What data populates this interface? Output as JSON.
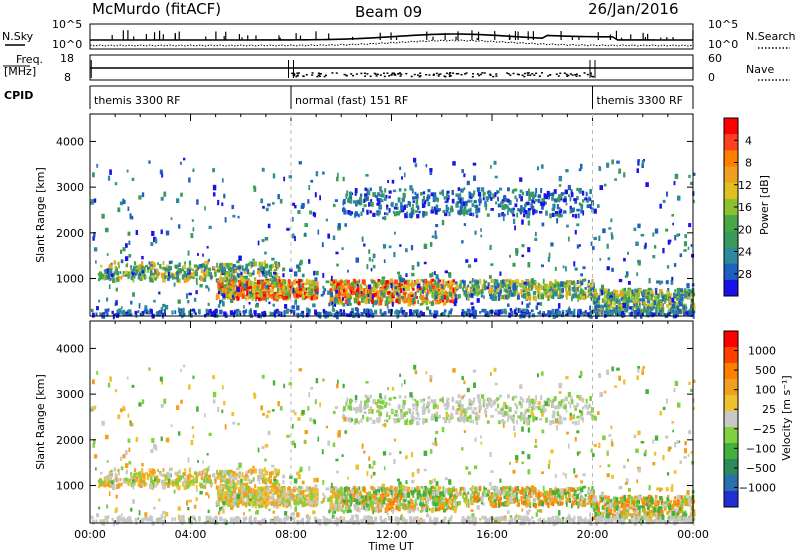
{
  "header": {
    "station": "McMurdo (fitACF)",
    "beam": "Beam 09",
    "date": "26/Jan/2016"
  },
  "top_panels": {
    "nsky_label": "N.Sky",
    "nsearch_label": "N.Search",
    "nsky_ticks": [
      "10^5",
      "10^0"
    ],
    "nsky_ticks_right": [
      "10^5",
      "10^0"
    ],
    "freq_label": "Freq.",
    "freq_unit": "[MHz]",
    "freq_ticks": [
      "18",
      "8"
    ],
    "nave_label": "Nave",
    "nave_ticks": [
      "60",
      "0"
    ],
    "cpid_label": "CPID",
    "cpid_segments": [
      {
        "label": "themis 3300 RF",
        "start_h": 0,
        "end_h": 8
      },
      {
        "label": "normal (fast) 151 RF",
        "start_h": 8,
        "end_h": 20
      },
      {
        "label": "themis 3300 RF",
        "start_h": 20,
        "end_h": 24
      }
    ]
  },
  "chart_data": [
    {
      "type": "heatmap",
      "name": "power",
      "xlabel": "Time UT",
      "ylabel": "Slant Range [km]",
      "xlim": [
        0,
        24
      ],
      "ylim": [
        180,
        4600
      ],
      "x_ticks": [
        "00:00",
        "04:00",
        "08:00",
        "12:00",
        "16:00",
        "20:00",
        "00:00"
      ],
      "y_ticks": [
        "1000",
        "2000",
        "3000",
        "4000"
      ],
      "y_tick_values": [
        1000,
        2000,
        3000,
        4000
      ],
      "colorbar": {
        "label": "Power [dB]",
        "ticks": [
          "4",
          "8",
          "12",
          "16",
          "20",
          "24",
          "28"
        ],
        "colors": [
          "#1a10e8",
          "#1f5fbf",
          "#2e8a9a",
          "#3a9a5a",
          "#48a848",
          "#8cc030",
          "#e0c020",
          "#f0a020",
          "#ff8000",
          "#ff4020",
          "#ff0000"
        ]
      },
      "echo_regions": [
        {
          "t": [
            0.3,
            7.5
          ],
          "r": [
            1000,
            1400
          ],
          "level": "mid",
          "desc": "near range band"
        },
        {
          "t": [
            5.0,
            9.0
          ],
          "r": [
            600,
            1000
          ],
          "level": "high"
        },
        {
          "t": [
            9.5,
            14.5
          ],
          "r": [
            500,
            1000
          ],
          "level": "high"
        },
        {
          "t": [
            14.5,
            20.0
          ],
          "r": [
            600,
            1000
          ],
          "level": "mid"
        },
        {
          "t": [
            10.0,
            20.0
          ],
          "r": [
            2400,
            3000
          ],
          "level": "low"
        },
        {
          "t": [
            20.0,
            24.0
          ],
          "r": [
            300,
            800
          ],
          "level": "mid"
        }
      ]
    },
    {
      "type": "heatmap",
      "name": "velocity",
      "xlabel": "Time UT",
      "ylabel": "Slant Range [km]",
      "xlim": [
        0,
        24
      ],
      "ylim": [
        180,
        4600
      ],
      "x_ticks": [
        "00:00",
        "04:00",
        "08:00",
        "12:00",
        "16:00",
        "20:00",
        "00:00"
      ],
      "y_ticks": [
        "1000",
        "2000",
        "3000",
        "4000"
      ],
      "y_tick_values": [
        1000,
        2000,
        3000,
        4000
      ],
      "colorbar": {
        "label": "Velocity [m s⁻¹]",
        "ticks": [
          "1000",
          "500",
          "100",
          "25",
          "−25",
          "−100",
          "−500",
          "−1000"
        ],
        "colors": [
          "#2030d0",
          "#2a6fb0",
          "#2e8a5a",
          "#44b03c",
          "#80d040",
          "#c8c8c8",
          "#f0c030",
          "#f0a020",
          "#ff7f00",
          "#ff4000",
          "#ff0000"
        ]
      }
    }
  ]
}
